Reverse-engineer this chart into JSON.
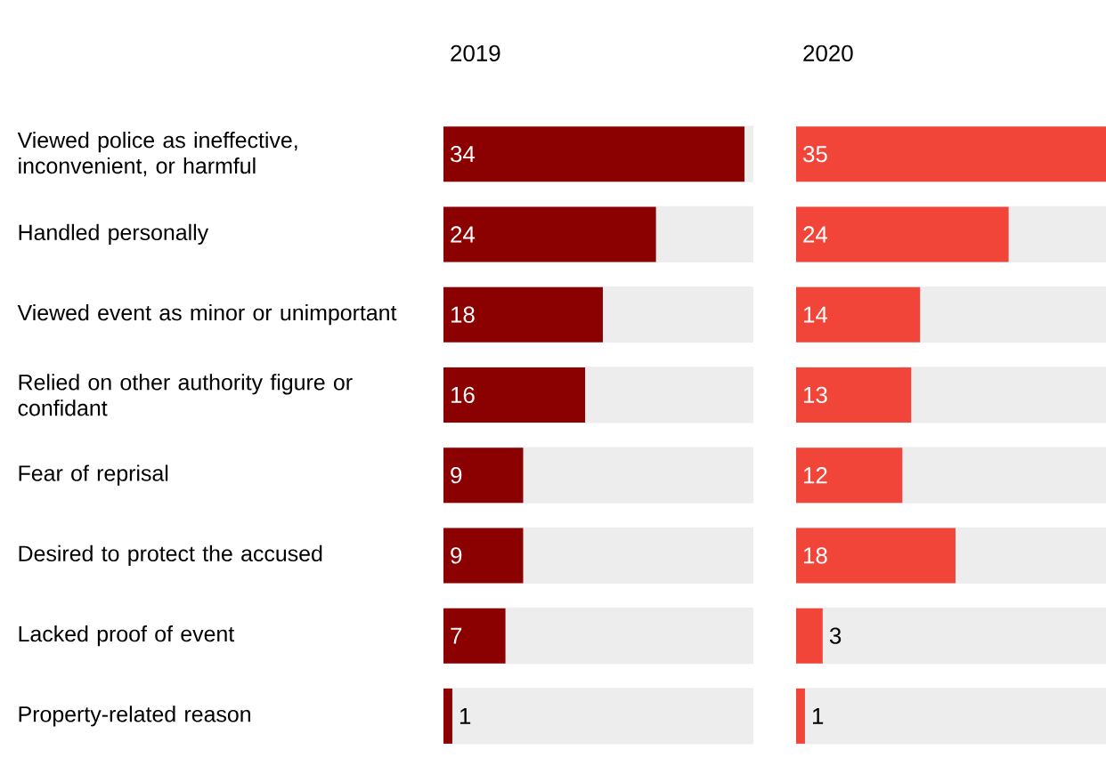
{
  "chart_data": [
    {
      "type": "bar",
      "orientation": "horizontal",
      "title": "2019",
      "categories": [
        "Viewed police as ineffective, inconvenient, or harmful",
        "Handled personally",
        "Viewed event as minor or unimportant",
        "Relied on other authority figure or confidant",
        "Fear of reprisal",
        "Desired to protect the accused",
        "Lacked proof of event",
        "Property-related reason"
      ],
      "values": [
        34,
        24,
        18,
        16,
        9,
        9,
        7,
        1
      ],
      "color": "#8b0000",
      "xlim": [
        0,
        35
      ],
      "data_labels": true,
      "tick_labels": "y"
    },
    {
      "type": "bar",
      "orientation": "horizontal",
      "title": "2020",
      "categories": [
        null,
        null,
        null,
        null,
        null,
        null,
        null,
        null
      ],
      "values": [
        35,
        24,
        14,
        13,
        12,
        18,
        3,
        1
      ],
      "color": "#f2453a",
      "xlim": [
        0,
        35
      ],
      "data_labels": true
    }
  ]
}
